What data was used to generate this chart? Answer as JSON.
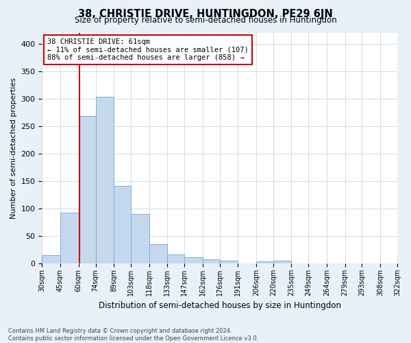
{
  "title": "38, CHRISTIE DRIVE, HUNTINGDON, PE29 6JN",
  "subtitle": "Size of property relative to semi-detached houses in Huntingdon",
  "xlabel": "Distribution of semi-detached houses by size in Huntingdon",
  "ylabel": "Number of semi-detached properties",
  "bin_edges": [
    30,
    45,
    60,
    74,
    89,
    103,
    118,
    133,
    147,
    162,
    176,
    191,
    206,
    220,
    235,
    249,
    264,
    279,
    293,
    308,
    322
  ],
  "bin_labels": [
    "30sqm",
    "45sqm",
    "60sqm",
    "74sqm",
    "89sqm",
    "103sqm",
    "118sqm",
    "133sqm",
    "147sqm",
    "162sqm",
    "176sqm",
    "191sqm",
    "206sqm",
    "220sqm",
    "235sqm",
    "249sqm",
    "264sqm",
    "279sqm",
    "293sqm",
    "308sqm",
    "322sqm"
  ],
  "bar_heights": [
    15,
    93,
    268,
    303,
    141,
    90,
    35,
    17,
    11,
    8,
    5,
    0,
    4,
    5,
    0,
    0,
    0,
    0,
    0,
    0
  ],
  "bar_color": "#c5d8ee",
  "bar_edge_color": "#7bafd4",
  "vline_x": 61,
  "vline_color": "#cc0000",
  "annotation_title": "38 CHRISTIE DRIVE: 61sqm",
  "annotation_line1": "← 11% of semi-detached houses are smaller (107)",
  "annotation_line2": "88% of semi-detached houses are larger (858) →",
  "annotation_box_edgecolor": "#cc0000",
  "ylim": [
    0,
    420
  ],
  "yticks": [
    0,
    50,
    100,
    150,
    200,
    250,
    300,
    350,
    400
  ],
  "grid_color": "#d0dce8",
  "plot_bg_color": "#ffffff",
  "fig_bg_color": "#e8f0f8",
  "footnote1": "Contains HM Land Registry data © Crown copyright and database right 2024.",
  "footnote2": "Contains public sector information licensed under the Open Government Licence v3.0."
}
